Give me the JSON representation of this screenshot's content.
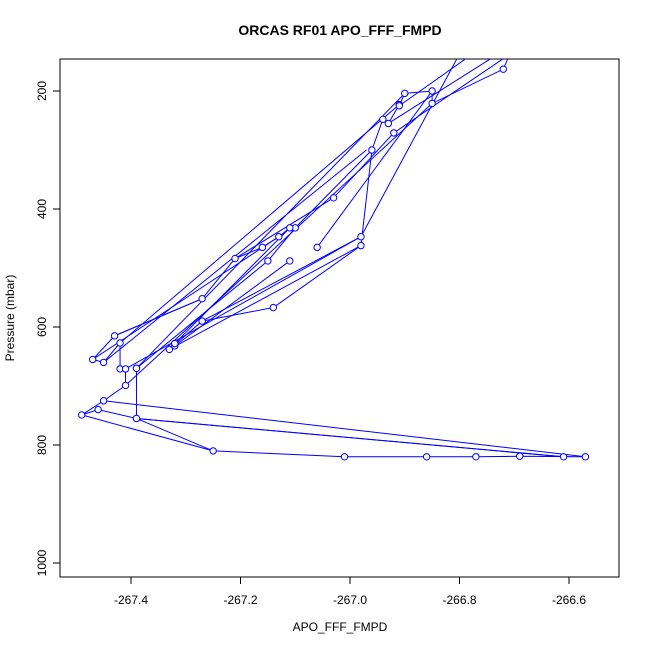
{
  "chart_data": {
    "type": "line",
    "title": "ORCAS RF01 APO_FFF_FMPD",
    "xlabel": "APO_FFF_FMPD",
    "ylabel": "Pressure (mbar)",
    "xlim": [
      -267.5,
      -266.55
    ],
    "ylim": [
      1010,
      150
    ],
    "y_reversed": true,
    "x_ticks": [
      -267.4,
      -267.2,
      -267.0,
      -266.8,
      -266.6
    ],
    "x_tick_labels": [
      "-267.4",
      "-267.2",
      "-267.0",
      "-266.8",
      "-266.6"
    ],
    "y_ticks": [
      200,
      400,
      600,
      800,
      1000
    ],
    "y_tick_labels": [
      "200",
      "400",
      "600",
      "800",
      "1000"
    ],
    "grid": false,
    "legend": "none",
    "series": [
      {
        "color": "#0000ff",
        "marker": "open-circle",
        "points": [
          [
            -267.39,
            670
          ],
          [
            -267.39,
            670
          ],
          [
            -267.15,
            488
          ],
          [
            -267.1,
            432
          ],
          [
            -266.96,
            300
          ],
          [
            -266.94,
            248
          ],
          [
            -266.93,
            255
          ],
          [
            -266.91,
            223
          ],
          [
            -266.91,
            225
          ],
          [
            -266.9,
            204
          ],
          [
            -266.85,
            200
          ],
          [
            -266.85,
            221
          ],
          [
            -266.72,
            163
          ],
          [
            -266.7,
            120
          ],
          [
            -266.79,
            120
          ],
          [
            -266.98,
            447
          ],
          [
            -267.27,
            590
          ],
          [
            -267.33,
            638
          ],
          [
            -267.32,
            632
          ],
          [
            -267.32,
            628
          ],
          [
            -267.11,
            432
          ],
          [
            -267.13,
            447
          ],
          [
            -267.16,
            465
          ],
          [
            -267.21,
            484
          ],
          [
            -267.27,
            552
          ],
          [
            -267.43,
            615
          ],
          [
            -267.47,
            655
          ],
          [
            -267.45,
            660
          ],
          [
            -267.42,
            627
          ],
          [
            -267.42,
            671
          ],
          [
            -267.41,
            671
          ],
          [
            -267.41,
            699
          ],
          [
            -267.45,
            725
          ],
          [
            -267.49,
            749
          ],
          [
            -267.46,
            740
          ],
          [
            -267.39,
            755
          ],
          [
            -266.61,
            820
          ],
          [
            -266.57,
            820
          ],
          [
            -266.69,
            819
          ],
          [
            -266.77,
            820
          ],
          [
            -266.86,
            820
          ],
          [
            -267.01,
            820
          ],
          [
            -267.25,
            810
          ],
          [
            -267.39,
            755
          ]
        ]
      }
    ],
    "extra_segments": [
      [
        [
          -267.39,
          670
        ],
        [
          -267.39,
          755
        ]
      ],
      [
        [
          -267.45,
          725
        ],
        [
          -266.57,
          820
        ]
      ],
      [
        [
          -267.39,
          755
        ],
        [
          -266.61,
          820
        ]
      ],
      [
        [
          -267.49,
          749
        ],
        [
          -267.25,
          810
        ]
      ],
      [
        [
          -267.41,
          671
        ],
        [
          -266.98,
          447
        ]
      ],
      [
        [
          -267.33,
          638
        ],
        [
          -266.98,
          462
        ]
      ],
      [
        [
          -267.32,
          632
        ],
        [
          -267.11,
          488
        ]
      ],
      [
        [
          -267.27,
          590
        ],
        [
          -267.14,
          567
        ]
      ],
      [
        [
          -267.14,
          567
        ],
        [
          -266.98,
          462
        ]
      ],
      [
        [
          -266.98,
          462
        ],
        [
          -266.96,
          300
        ]
      ],
      [
        [
          -267.06,
          465
        ],
        [
          -266.85,
          200
        ]
      ],
      [
        [
          -267.03,
          381
        ],
        [
          -266.92,
          271
        ]
      ],
      [
        [
          -267.21,
          484
        ],
        [
          -267.03,
          381
        ]
      ],
      [
        [
          -267.43,
          615
        ],
        [
          -267.27,
          552
        ]
      ],
      [
        [
          -267.47,
          655
        ],
        [
          -267.13,
          447
        ]
      ],
      [
        [
          -267.45,
          660
        ],
        [
          -266.97,
          300
        ]
      ],
      [
        [
          -267.42,
          627
        ],
        [
          -266.91,
          223
        ]
      ],
      [
        [
          -267.39,
          670
        ],
        [
          -266.9,
          204
        ]
      ],
      [
        [
          -267.41,
          699
        ],
        [
          -266.85,
          221
        ]
      ],
      [
        [
          -266.93,
          255
        ],
        [
          -266.7,
          120
        ]
      ],
      [
        [
          -266.91,
          225
        ],
        [
          -266.75,
          120
        ]
      ],
      [
        [
          -266.92,
          271
        ],
        [
          -266.68,
          120
        ]
      ]
    ],
    "extra_points": [
      [
        -267.06,
        465
      ],
      [
        -267.03,
        381
      ],
      [
        -266.98,
        462
      ],
      [
        -267.14,
        567
      ],
      [
        -267.11,
        488
      ],
      [
        -266.92,
        271
      ]
    ]
  }
}
